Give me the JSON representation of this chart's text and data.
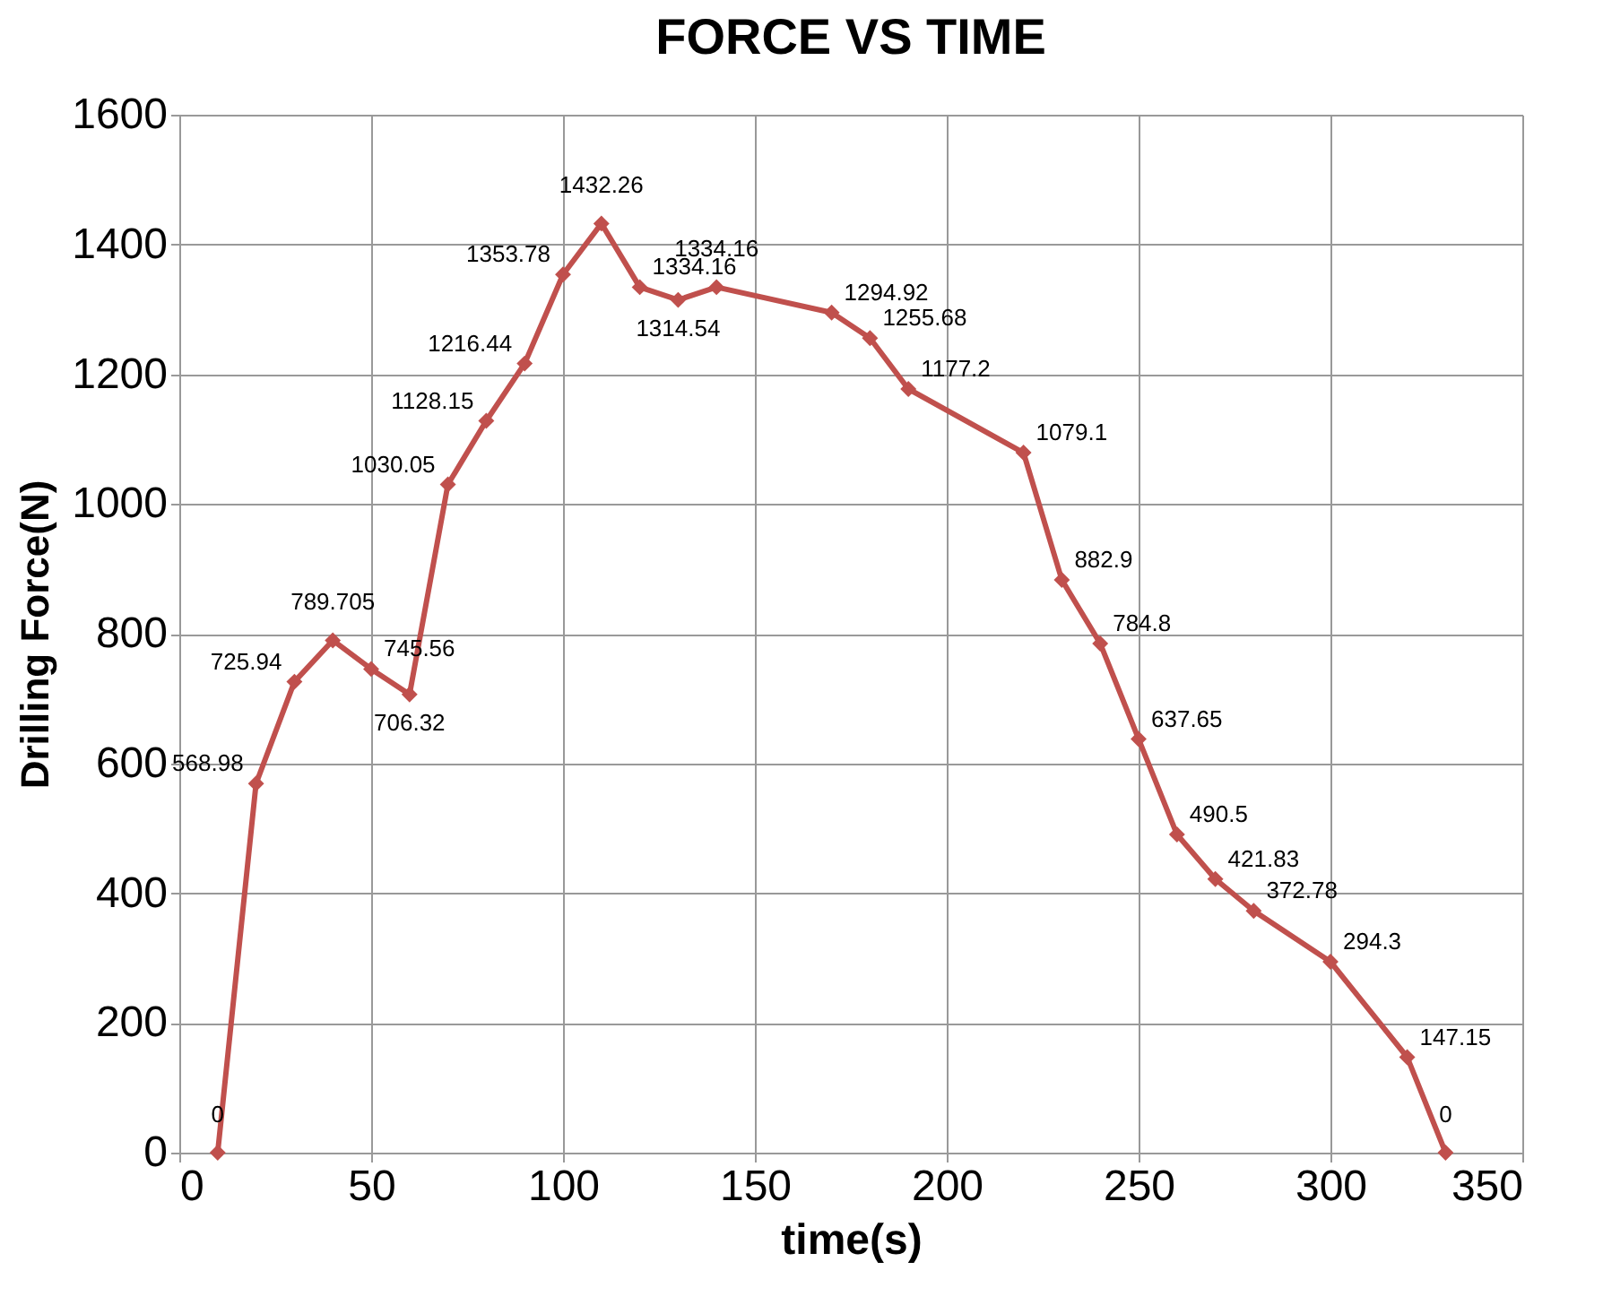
{
  "chart_data": {
    "type": "line",
    "title": "FORCE VS TIME",
    "xlabel": "time(s)",
    "ylabel": "Drilling Force(N)",
    "x": [
      10,
      20,
      30,
      40,
      50,
      60,
      70,
      80,
      90,
      100,
      110,
      120,
      130,
      140,
      170,
      180,
      190,
      220,
      230,
      240,
      250,
      260,
      270,
      280,
      300,
      320,
      330
    ],
    "series": [
      {
        "color": "#c0504d",
        "values": [
          0,
          568.98,
          725.94,
          789.705,
          745.56,
          706.32,
          1030.05,
          1128.15,
          1216.44,
          1353.78,
          1432.26,
          1334.16,
          1314.54,
          1334.16,
          1294.92,
          1255.68,
          1177.2,
          1079.1,
          882.9,
          784.8,
          637.65,
          490.5,
          421.83,
          372.78,
          294.3,
          147.15,
          0
        ]
      }
    ],
    "xlim": [
      0,
      350
    ],
    "xticks": [
      0,
      50,
      100,
      150,
      200,
      250,
      300,
      350
    ],
    "ylim": [
      0,
      1600
    ],
    "yticks": [
      0,
      200,
      400,
      600,
      800,
      1000,
      1200,
      1400,
      1600
    ],
    "grid": true,
    "marker": "diamond",
    "line_style": "solid",
    "data_labels": true
  }
}
